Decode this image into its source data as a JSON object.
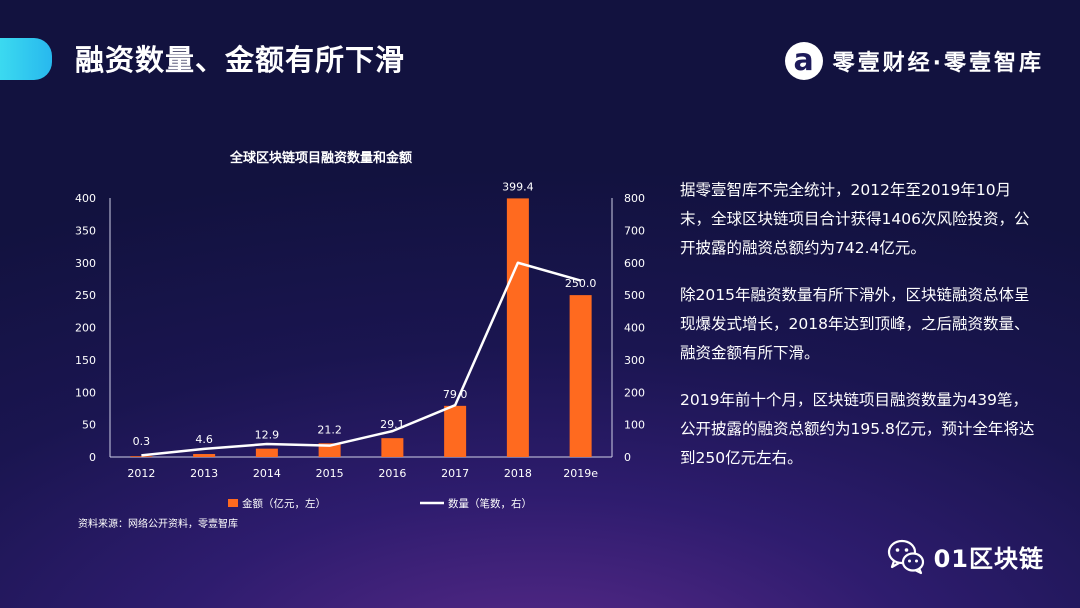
{
  "header": {
    "title": "融资数量、金额有所下滑",
    "brand": "零壹财经·零壹智库"
  },
  "chart_data": {
    "type": "bar+line",
    "title": "全球区块链项目融资数量和金额",
    "categories": [
      "2012",
      "2013",
      "2014",
      "2015",
      "2016",
      "2017",
      "2018",
      "2019e"
    ],
    "series": [
      {
        "name": "金额（亿元，左）",
        "kind": "bar",
        "axis": "left",
        "color": "#ff6a1f",
        "values": [
          0.3,
          4.6,
          12.9,
          21.2,
          29.1,
          79.0,
          399.4,
          250.0
        ],
        "labels": [
          "0.3",
          "4.6",
          "12.9",
          "21.2",
          "29.1",
          "79.0",
          "399.4",
          "250.0"
        ]
      },
      {
        "name": "数量（笔数，右）",
        "kind": "line",
        "axis": "right",
        "color": "#ffffff",
        "values": [
          5,
          25,
          40,
          35,
          80,
          160,
          600,
          545
        ]
      }
    ],
    "yleft": {
      "min": 0,
      "max": 400,
      "ticks": [
        0,
        50,
        100,
        150,
        200,
        250,
        300,
        350,
        400
      ]
    },
    "yright": {
      "min": 0,
      "max": 800,
      "ticks": [
        0,
        100,
        200,
        300,
        400,
        500,
        600,
        700,
        800
      ]
    },
    "grid": false,
    "legend_position": "bottom",
    "source": "资料来源：网络公开资料，零壹智库"
  },
  "body": {
    "p1": "据零壹智库不完全统计，2012年至2019年10月末，全球区块链项目合计获得1406次风险投资，公开披露的融资总额约为742.4亿元。",
    "p2": "除2015年融资数量有所下滑外，区块链融资总体呈现爆发式增长，2018年达到顶峰，之后融资数量、融资金额有所下滑。",
    "p3": "2019年前十个月，区块链项目融资数量为439笔，公开披露的融资总额约为195.8亿元，预计全年将达到250亿元左右。"
  },
  "footer": {
    "wechat_label": "01区块链",
    "icon": "wechat-icon"
  }
}
